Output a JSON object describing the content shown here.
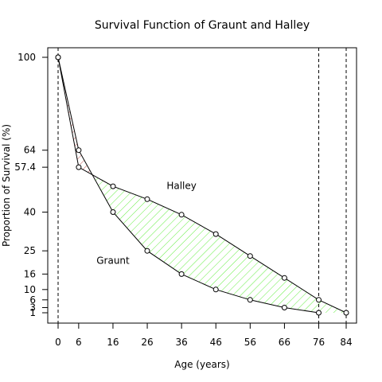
{
  "chart_data": {
    "type": "line",
    "title": "Survival Function of Graunt and Halley",
    "xlabel": "Age (years)",
    "ylabel": "Proportion of Survival (%)",
    "xlim": [
      0,
      84
    ],
    "ylim": [
      0,
      100
    ],
    "x_ticks": [
      0,
      6,
      16,
      26,
      36,
      46,
      56,
      66,
      76,
      84
    ],
    "y_ticks": [
      1,
      3,
      6,
      10,
      16,
      25,
      40,
      57.4,
      64,
      100
    ],
    "y_tick_labels": [
      "1",
      "3",
      "6",
      "10",
      "16",
      "25",
      "40",
      "57.4",
      "64",
      "100"
    ],
    "vertical_reference_lines": [
      0,
      76,
      84
    ],
    "series": [
      {
        "name": "Graunt",
        "x": [
          0,
          6,
          16,
          26,
          36,
          46,
          56,
          66,
          76
        ],
        "y": [
          100,
          64,
          40,
          25,
          16,
          10,
          6,
          3,
          1
        ]
      },
      {
        "name": "Halley",
        "x": [
          0,
          6,
          16,
          26,
          36,
          46,
          56,
          66,
          76,
          84
        ],
        "y": [
          100,
          57.4,
          50,
          45,
          39,
          31.5,
          23,
          14.5,
          6,
          1
        ]
      }
    ],
    "shading": [
      {
        "region": "Graunt above Halley",
        "x_range": [
          0,
          11
        ],
        "color": "#c0504d"
      },
      {
        "region": "Halley above Graunt",
        "x_range": [
          11,
          84
        ],
        "color": "#66ee44"
      }
    ],
    "annotations": [
      {
        "text": "Halley",
        "x": 36,
        "y": 49
      },
      {
        "text": "Graunt",
        "x": 16,
        "y": 20
      }
    ]
  }
}
